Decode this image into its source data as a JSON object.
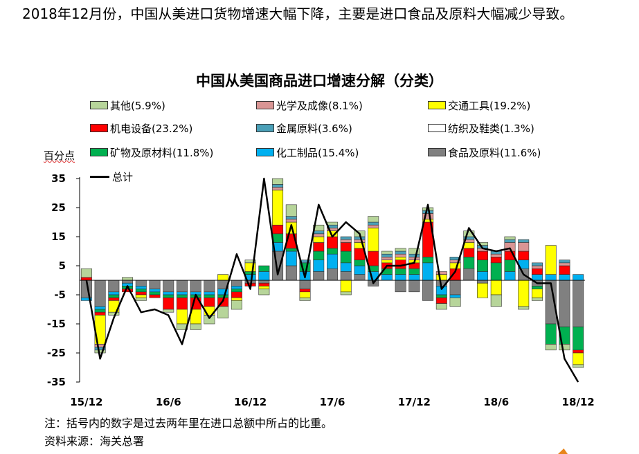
{
  "headline": "2018年12月份，中国从美进口货物增速大幅下降，主要是进口食品及原料大幅减少导致。",
  "note": "注：括号内的数字是过去两年里在进口总额中所占的比重。",
  "source": "资料来源：海关总署",
  "chart_data": {
    "type": "bar",
    "title": "中国从美国商品进口增速分解（分类）",
    "ylabel": "百分点",
    "ylim": [
      -35,
      35
    ],
    "yticks": [
      35,
      25,
      15,
      5,
      -5,
      -15,
      -25,
      -35
    ],
    "x_tick_labels": [
      "15/12",
      "16/6",
      "16/12",
      "17/6",
      "17/12",
      "18/6",
      "18/12"
    ],
    "x": [
      "15/12",
      "16/1",
      "16/2",
      "16/3",
      "16/4",
      "16/5",
      "16/6",
      "16/7",
      "16/8",
      "16/9",
      "16/10",
      "16/11",
      "16/12",
      "17/1",
      "17/2",
      "17/3",
      "17/4",
      "17/5",
      "17/6",
      "17/7",
      "17/8",
      "17/9",
      "17/10",
      "17/11",
      "17/12",
      "18/1",
      "18/2",
      "18/3",
      "18/4",
      "18/5",
      "18/6",
      "18/7",
      "18/8",
      "18/9",
      "18/10",
      "18/11",
      "18/12"
    ],
    "legend": [
      {
        "name": "其他(5.9%)",
        "color": "#b7d59a"
      },
      {
        "name": "光学及成像(8.1%)",
        "color": "#d99594"
      },
      {
        "name": "交通工具(19.2%)",
        "color": "#ffff00"
      },
      {
        "name": "机电设备(23.2%)",
        "color": "#ff0000"
      },
      {
        "name": "金属原料(3.6%)",
        "color": "#4aa0b8"
      },
      {
        "name": "纺织及鞋类(1.3%)",
        "color": "#ffffff"
      },
      {
        "name": "矿物及原材料(11.8%)",
        "color": "#00b050"
      },
      {
        "name": "化工制品(15.4%)",
        "color": "#00b0f0"
      },
      {
        "name": "食品及原料(11.6%)",
        "color": "#808080"
      },
      {
        "name": "总计",
        "color": "#000000"
      }
    ],
    "series": [
      {
        "name": "食品及原料(11.6%)",
        "color": "#808080",
        "values": [
          -6,
          -9,
          -4,
          -1,
          -2,
          -3,
          -4,
          -4,
          -4,
          -4,
          -3,
          -2,
          -1,
          -1,
          10,
          5,
          -3,
          3,
          4,
          3,
          2,
          -2,
          0,
          -4,
          -4,
          -7,
          -2,
          -5,
          4,
          -1,
          0,
          0,
          4,
          -2,
          -15,
          -16,
          -16
        ]
      },
      {
        "name": "化工制品(15.4%)",
        "color": "#00b0f0",
        "values": [
          -1,
          -1,
          -1,
          -1,
          -1,
          -1,
          -1,
          -1,
          -1,
          -1,
          -2,
          -1,
          2,
          3,
          3,
          5,
          3,
          4,
          5,
          3,
          3,
          3,
          2,
          2,
          2,
          6,
          -3,
          -1,
          0,
          3,
          0,
          3,
          3,
          2,
          2,
          2,
          2
        ]
      },
      {
        "name": "矿物及原材料(11.8%)",
        "color": "#00b050",
        "values": [
          0,
          -1,
          -1,
          -1,
          -1,
          -1,
          -1,
          -1,
          -1,
          -1,
          -1,
          -1,
          1,
          2,
          3,
          1,
          3,
          3,
          2,
          4,
          2,
          2,
          2,
          2,
          2,
          2,
          -1,
          0,
          4,
          4,
          6,
          4,
          0,
          -1,
          -7,
          -6,
          -8
        ]
      },
      {
        "name": "机电设备(23.2%)",
        "color": "#ff0000",
        "values": [
          1,
          -1,
          -1,
          -1,
          -1,
          -1,
          -4,
          -4,
          -4,
          -3,
          -3,
          -2,
          -1,
          -1,
          3,
          5,
          -1,
          3,
          4,
          3,
          4,
          5,
          2,
          3,
          2,
          12,
          -2,
          4,
          3,
          3,
          2,
          3,
          3,
          2,
          0,
          3,
          -1
        ]
      },
      {
        "name": "交通工具(19.2%)",
        "color": "#ffff00",
        "values": [
          0,
          -10,
          -4,
          0,
          -1,
          0,
          0,
          -5,
          -5,
          -3,
          2,
          -1,
          3,
          -1,
          12,
          4,
          -2,
          2,
          2,
          -4,
          2,
          8,
          1,
          1,
          1,
          1,
          2,
          2,
          2,
          -5,
          -5,
          0,
          -9,
          -3,
          10,
          0,
          -4
        ]
      },
      {
        "name": "光学及成像(8.1%)",
        "color": "#d99594",
        "values": [
          0,
          -1,
          0,
          0,
          0,
          0,
          0,
          0,
          0,
          0,
          0,
          0,
          0,
          0,
          1,
          1,
          0,
          1,
          1,
          1,
          1,
          1,
          1,
          1,
          1,
          2,
          1,
          1,
          1,
          1,
          1,
          3,
          3,
          1,
          0,
          1,
          0
        ]
      },
      {
        "name": "金属原料(3.6%)",
        "color": "#4aa0b8",
        "values": [
          0,
          -1,
          0,
          0,
          0,
          0,
          0,
          0,
          0,
          0,
          0,
          0,
          0,
          0,
          1,
          1,
          1,
          1,
          1,
          1,
          1,
          1,
          1,
          1,
          1,
          1,
          0,
          1,
          1,
          1,
          1,
          1,
          1,
          1,
          0,
          1,
          0
        ]
      },
      {
        "name": "其他(5.9%)",
        "color": "#b7d59a",
        "values": [
          3,
          -1,
          -1,
          1,
          -1,
          0,
          -1,
          -2,
          -2,
          -3,
          -4,
          -3,
          1,
          -2,
          2,
          4,
          -1,
          2,
          1,
          -1,
          2,
          2,
          1,
          1,
          2,
          1,
          -2,
          -3,
          2,
          1,
          -4,
          1,
          -1,
          -1,
          -2,
          -2,
          -1
        ]
      },
      {
        "name": "总计",
        "color": "#000000",
        "line": true,
        "values": [
          0,
          -27,
          -13,
          -2,
          -11,
          -10,
          -12,
          -22,
          -5,
          -13,
          -7,
          9,
          -3,
          35,
          2,
          19,
          1,
          26,
          15,
          20,
          16,
          -1,
          5,
          5,
          6,
          26,
          -3,
          3,
          18,
          11,
          10,
          11,
          2,
          -1,
          -1,
          -27,
          -35
        ]
      }
    ]
  }
}
